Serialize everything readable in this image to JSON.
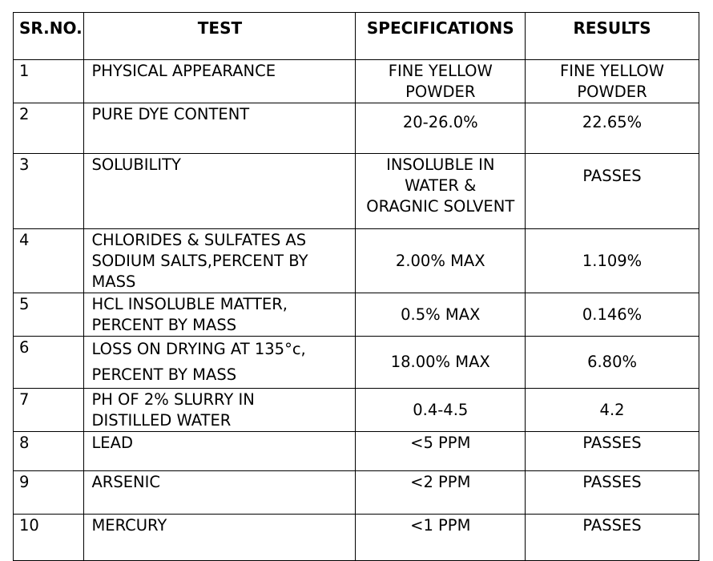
{
  "table": {
    "headers": {
      "sr_no": "SR.NO.",
      "test": "TEST",
      "specifications": "SPECIFICATIONS",
      "results": "RESULTS"
    },
    "rows": [
      {
        "sr": "1",
        "test_lines": [
          "PHYSICAL APPEARANCE"
        ],
        "spec_lines": [
          "FINE YELLOW",
          "POWDER"
        ],
        "result_lines": [
          "FINE YELLOW",
          "POWDER"
        ]
      },
      {
        "sr": "2",
        "test_lines": [
          "PURE DYE CONTENT"
        ],
        "spec_lines": [
          "20-26.0%"
        ],
        "result_lines": [
          "22.65%"
        ]
      },
      {
        "sr": "3",
        "test_lines": [
          "SOLUBILITY"
        ],
        "spec_lines": [
          "INSOLUBLE IN",
          "WATER &",
          "ORAGNIC SOLVENT"
        ],
        "result_lines": [
          "PASSES"
        ]
      },
      {
        "sr": "4",
        "test_lines": [
          "CHLORIDES  &  SULFATES AS",
          "SODIUM SALTS,PERCENT BY",
          "MASS"
        ],
        "spec_lines": [
          "2.00%  MAX"
        ],
        "result_lines": [
          "1.109%"
        ]
      },
      {
        "sr": "5",
        "test_lines": [
          "HCL INSOLUBLE MATTER,",
          "PERCENT BY MASS"
        ],
        "spec_lines": [
          "0.5% MAX"
        ],
        "result_lines": [
          "0.146%"
        ]
      },
      {
        "sr": "6",
        "test_lines": [
          "LOSS ON DRYING AT 135°c,",
          "PERCENT BY MASS"
        ],
        "spec_lines": [
          "18.00% MAX"
        ],
        "result_lines": [
          "6.80%"
        ]
      },
      {
        "sr": "7",
        "test_lines": [
          "PH OF 2% SLURRY IN",
          "DISTILLED WATER"
        ],
        "spec_lines": [
          "0.4-4.5"
        ],
        "result_lines": [
          "4.2"
        ]
      },
      {
        "sr": "8",
        "test_lines": [
          "LEAD"
        ],
        "spec_lines": [
          "<5 PPM"
        ],
        "result_lines": [
          "PASSES"
        ]
      },
      {
        "sr": "9",
        "test_lines": [
          "ARSENIC"
        ],
        "spec_lines": [
          "<2 PPM"
        ],
        "result_lines": [
          "PASSES"
        ]
      },
      {
        "sr": "10",
        "test_lines": [
          "MERCURY"
        ],
        "spec_lines": [
          "<1 PPM"
        ],
        "result_lines": [
          "PASSES"
        ]
      }
    ]
  }
}
